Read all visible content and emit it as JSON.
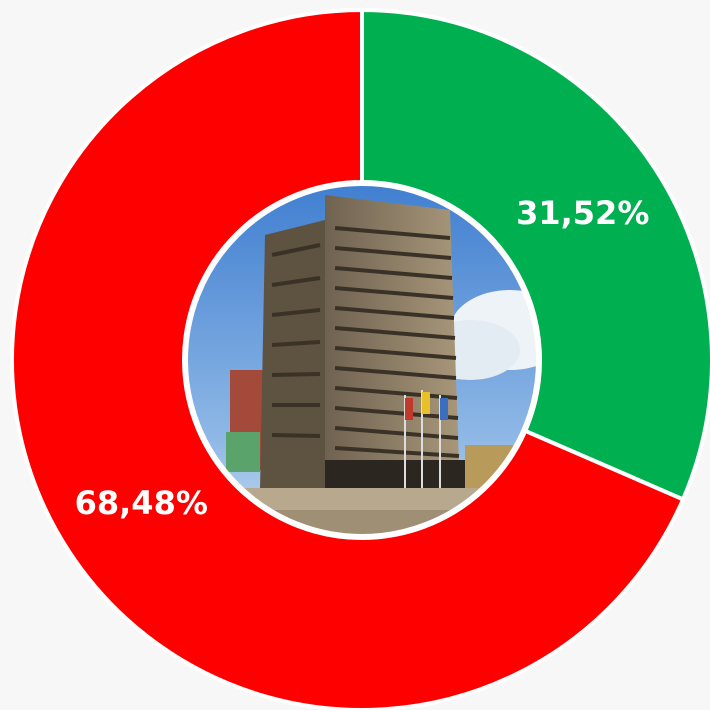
{
  "chart_data": {
    "type": "pie",
    "values": [
      31.52,
      68.48
    ],
    "value_labels": [
      "31,52%",
      "68,48%"
    ],
    "colors": [
      "#00b050",
      "#ff0000"
    ],
    "donut": true
  }
}
